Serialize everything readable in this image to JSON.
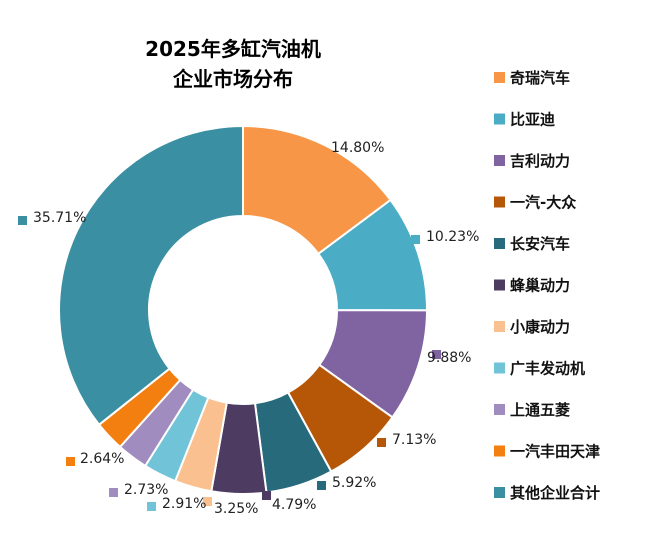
{
  "chart_data": {
    "type": "pie",
    "donut": true,
    "title_lines": [
      "2025年多缸汽油机",
      "企业市场分布"
    ],
    "legend_position": "right",
    "slices": [
      {
        "name": "奇瑞汽车",
        "value": 14.8,
        "label": "14.80%",
        "color": "#f79646"
      },
      {
        "name": "比亚迪",
        "value": 10.23,
        "label": "10.23%",
        "color": "#4bacc6"
      },
      {
        "name": "吉利动力",
        "value": 9.88,
        "label": "9.88%",
        "color": "#8064a2"
      },
      {
        "name": "一汽-大众",
        "value": 7.13,
        "label": "7.13%",
        "color": "#b65708"
      },
      {
        "name": "长安汽车",
        "value": 5.92,
        "label": "5.92%",
        "color": "#276a7c"
      },
      {
        "name": "蜂巢动力",
        "value": 4.79,
        "label": "4.79%",
        "color": "#4d3b62"
      },
      {
        "name": "小康动力",
        "value": 3.25,
        "label": "3.25%",
        "color": "#fac090"
      },
      {
        "name": "广丰发动机",
        "value": 2.91,
        "label": "2.91%",
        "color": "#71c3d8"
      },
      {
        "name": "上通五菱",
        "value": 2.73,
        "label": "2.73%",
        "color": "#a18cbf"
      },
      {
        "name": "一汽丰田天津",
        "value": 2.64,
        "label": "2.64%",
        "color": "#f27f10"
      },
      {
        "name": "其他企业合计",
        "value": 35.71,
        "label": "35.71%",
        "color": "#3a8fa3"
      }
    ]
  }
}
